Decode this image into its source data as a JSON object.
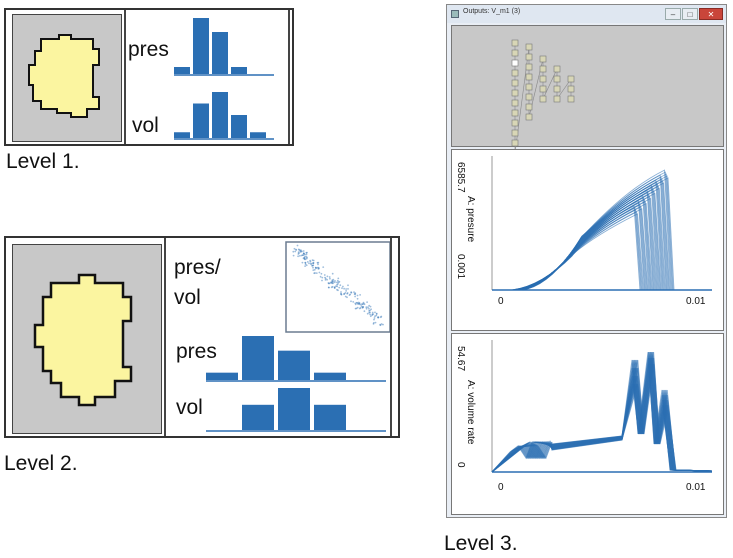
{
  "levels": {
    "level1": {
      "caption": "Level 1.",
      "histograms": [
        {
          "label": "pres",
          "values": [
            1,
            8,
            6,
            1
          ]
        },
        {
          "label": "vol",
          "values": [
            1,
            6,
            8,
            4,
            1
          ]
        }
      ]
    },
    "level2": {
      "caption": "Level 2.",
      "scatter_label_line1": "pres/",
      "scatter_label_line2": "vol",
      "histograms": [
        {
          "label": "pres",
          "values": [
            1,
            6,
            4,
            1,
            0
          ]
        },
        {
          "label": "vol",
          "values": [
            0,
            3,
            5,
            3,
            0
          ]
        }
      ]
    },
    "level3": {
      "caption": "Level 3.",
      "window": {
        "title": "Outputs: V_m1 (3)",
        "min_button": "–",
        "max_button": "□",
        "close_button": "✕"
      },
      "plot1": {
        "ylabel": "A: presure",
        "ymax_label": "6585.7",
        "ymin_label": "0.001",
        "xmin_label": "0",
        "xmax_label": "0.01"
      },
      "plot2": {
        "ylabel": "A: volume rate",
        "ymax_label": "54.67",
        "ymin_label": "0",
        "xmin_label": "0",
        "xmax_label": "0.01"
      }
    }
  },
  "colors": {
    "bar": "#2b6fb3",
    "gray_panel": "#c8c8c8",
    "shape_fill": "#fbf5a0",
    "curve": "#2b6fb3"
  }
}
